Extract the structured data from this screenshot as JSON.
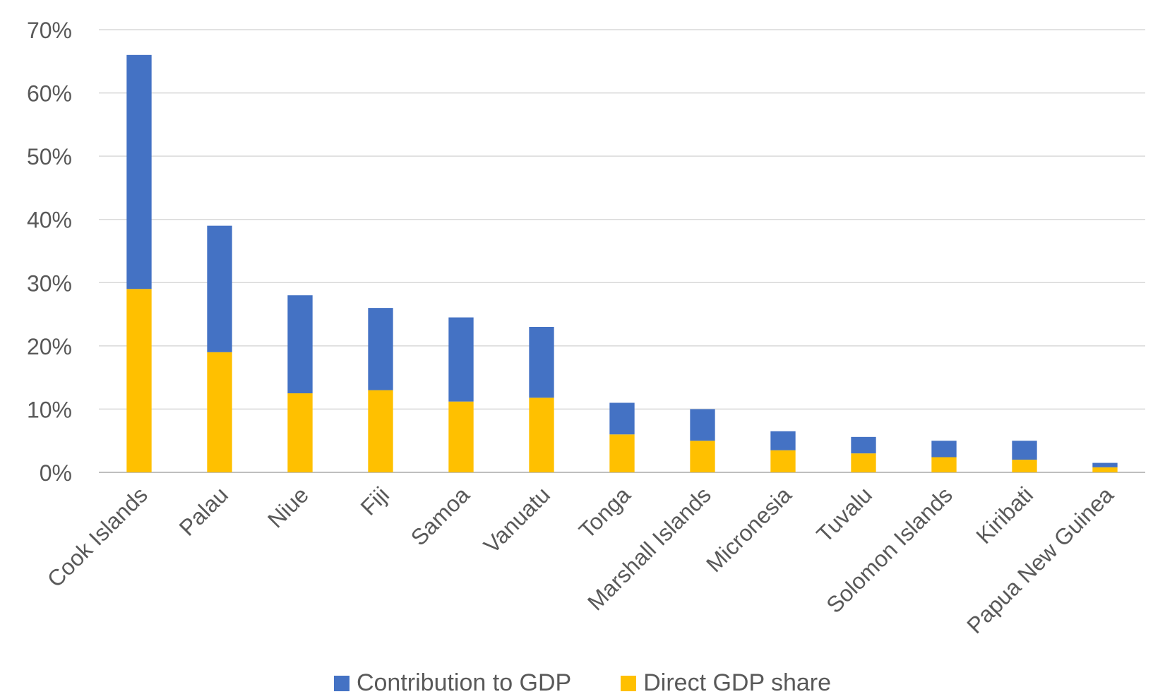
{
  "chart_data": {
    "type": "bar",
    "stacked": true,
    "categories": [
      "Cook Islands",
      "Palau",
      "Niue",
      "Fiji",
      "Samoa",
      "Vanuatu",
      "Tonga",
      "Marshall Islands",
      "Micronesia",
      "Tuvalu",
      "Solomon Islands",
      "Kiribati",
      "Papua New Guinea"
    ],
    "series": [
      {
        "name": "Direct GDP share",
        "color": "#FFC000",
        "values": [
          29,
          19,
          12.5,
          13,
          11.2,
          11.8,
          6,
          5,
          3.5,
          3,
          2.4,
          2,
          0.8
        ]
      },
      {
        "name": "Contribution to GDP",
        "color": "#4472C4",
        "values": [
          37,
          20,
          15.5,
          13,
          13.3,
          11.2,
          5,
          5,
          3,
          2.6,
          2.6,
          3,
          0.7
        ]
      }
    ],
    "ylim": [
      0,
      70
    ],
    "yticks": [
      "0%",
      "10%",
      "20%",
      "30%",
      "40%",
      "50%",
      "60%",
      "70%"
    ],
    "grid": true,
    "legend_position": "bottom",
    "legend_order": [
      "Contribution to GDP",
      "Direct GDP share"
    ]
  }
}
